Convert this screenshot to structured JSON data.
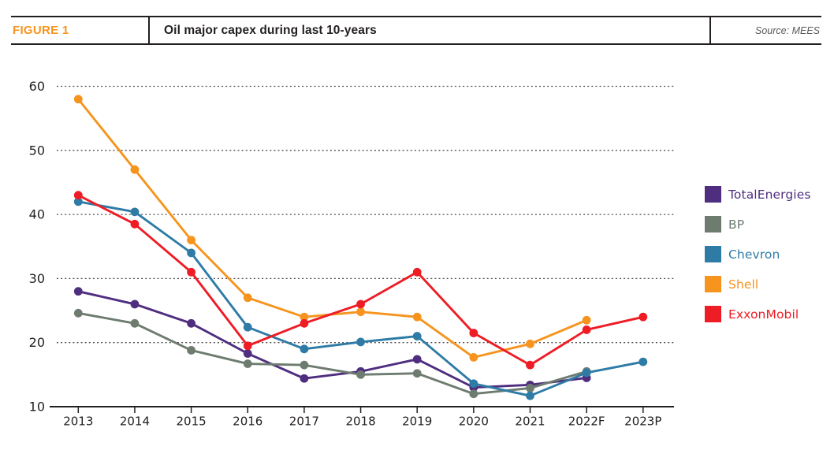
{
  "figure": {
    "label": "FIGURE 1",
    "title": "Oil major capex during last 10-years",
    "source": "Source: MEES"
  },
  "colors": {
    "figure_label_orange": "#F7941D",
    "rule_black": "#231f20",
    "grid_gray": "#4d4d4d",
    "tick_text": "#231f20"
  },
  "chart_data": {
    "type": "line",
    "title": "Oil major capex during last 10-years",
    "categories": [
      "2013",
      "2014",
      "2015",
      "2016",
      "2017",
      "2018",
      "2019",
      "2020",
      "2021",
      "2022F",
      "2023P"
    ],
    "series": [
      {
        "name": "TotalEnergies",
        "color": "#4F2D7F",
        "values": [
          28,
          26,
          23,
          18.3,
          14.4,
          15.5,
          17.4,
          13,
          13.4,
          14.5,
          null
        ]
      },
      {
        "name": "BP",
        "color": "#6E7C70",
        "values": [
          24.6,
          23,
          18.8,
          16.7,
          16.5,
          15,
          15.2,
          12,
          12.9,
          15.5,
          null
        ]
      },
      {
        "name": "Chevron",
        "color": "#2E7BA6",
        "values": [
          42,
          40.4,
          34,
          22.4,
          19,
          20.1,
          21,
          13.6,
          11.7,
          15.3,
          17
        ]
      },
      {
        "name": "Shell",
        "color": "#F6941E",
        "values": [
          58,
          47,
          36,
          27,
          24,
          24.8,
          24,
          17.7,
          19.8,
          23.5,
          null
        ]
      },
      {
        "name": "ExxonMobil",
        "color": "#EE1C25",
        "values": [
          43,
          38.5,
          31,
          19.5,
          23,
          26,
          31,
          21.5,
          16.5,
          22,
          24
        ]
      }
    ],
    "xlabel": "",
    "ylabel": "",
    "ylim": [
      10,
      60
    ],
    "yticks": [
      10,
      20,
      30,
      40,
      50,
      60
    ],
    "grid": "horizontal-dotted",
    "legend_position": "right"
  }
}
